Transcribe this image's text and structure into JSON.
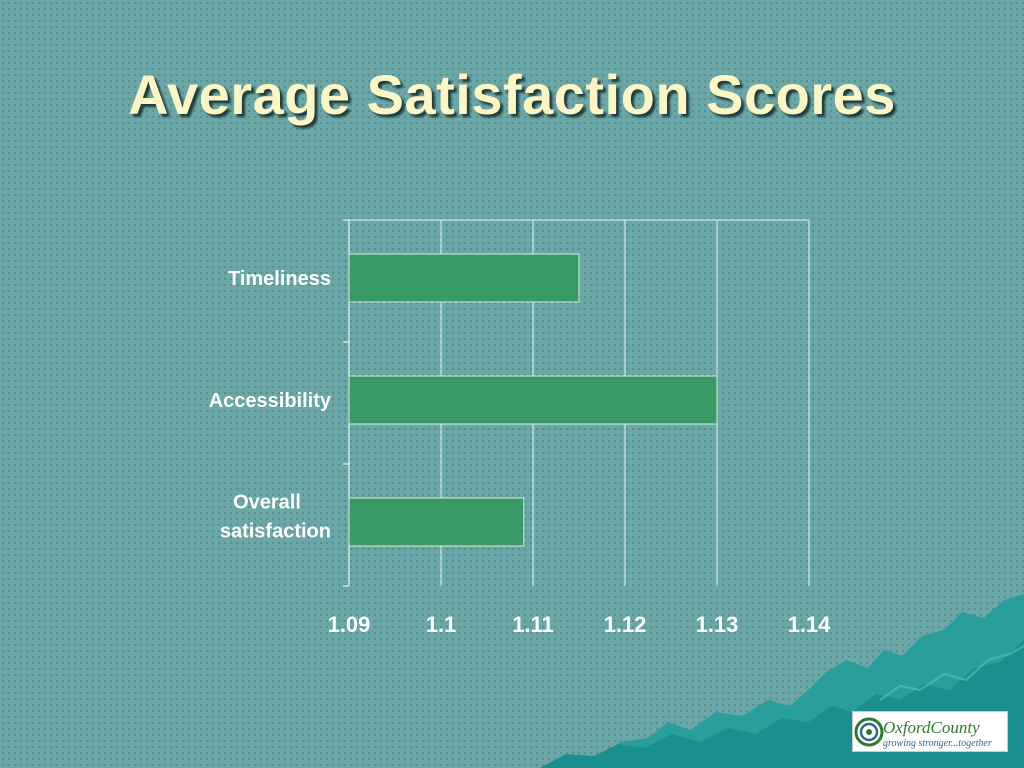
{
  "slide": {
    "title": "Average Satisfaction Scores"
  },
  "logo": {
    "name": "OxfordCounty",
    "tagline": "growing stronger...together"
  },
  "colors": {
    "background": "#6aa7a6",
    "bar": "#3a9a66",
    "title": "#fbf6c4",
    "mountains": "#1d9a9a"
  },
  "chart_data": {
    "type": "bar",
    "orientation": "horizontal",
    "categories": [
      "Timeliness",
      "Accessibility",
      "Overall satisfaction"
    ],
    "values": [
      1.115,
      1.13,
      1.109
    ],
    "xlim": [
      1.09,
      1.14
    ],
    "xticks": [
      "1.09",
      "1.1",
      "1.11",
      "1.12",
      "1.13",
      "1.14"
    ],
    "grid": true,
    "legend": "none"
  }
}
